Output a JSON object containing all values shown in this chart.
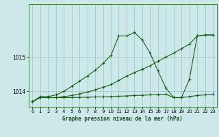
{
  "title": "Graphe pression niveau de la mer (hPa)",
  "background_color": "#cce8e8",
  "grid_color": "#99cccc",
  "line_color": "#1a5c1a",
  "ylim": [
    1013.55,
    1016.55
  ],
  "xlim": [
    -0.5,
    23.5
  ],
  "yticks": [
    1014,
    1015
  ],
  "xticks": [
    0,
    1,
    2,
    3,
    4,
    5,
    6,
    7,
    8,
    9,
    10,
    11,
    12,
    13,
    14,
    15,
    16,
    17,
    18,
    19,
    20,
    21,
    22,
    23
  ],
  "s1": [
    1013.7,
    1013.85,
    1013.85,
    1013.9,
    1014.0,
    1014.15,
    1014.3,
    1014.45,
    1014.62,
    1014.82,
    1015.05,
    1015.62,
    1015.62,
    1015.72,
    1015.5,
    1015.12,
    1014.6,
    1014.1,
    1013.82,
    1013.82,
    1014.35,
    1015.62,
    1015.65,
    1015.65
  ],
  "s2": [
    1013.7,
    1013.82,
    1013.82,
    1013.82,
    1013.85,
    1013.88,
    1013.93,
    1013.98,
    1014.05,
    1014.12,
    1014.2,
    1014.32,
    1014.45,
    1014.55,
    1014.65,
    1014.75,
    1014.88,
    1015.0,
    1015.12,
    1015.25,
    1015.38,
    1015.62,
    1015.65,
    1015.65
  ],
  "s3": [
    1013.7,
    1013.82,
    1013.82,
    1013.82,
    1013.82,
    1013.82,
    1013.83,
    1013.83,
    1013.84,
    1013.84,
    1013.85,
    1013.86,
    1013.87,
    1013.88,
    1013.89,
    1013.9,
    1013.91,
    1013.92,
    1013.82,
    1013.82,
    1013.85,
    1013.88,
    1013.9,
    1013.92
  ]
}
